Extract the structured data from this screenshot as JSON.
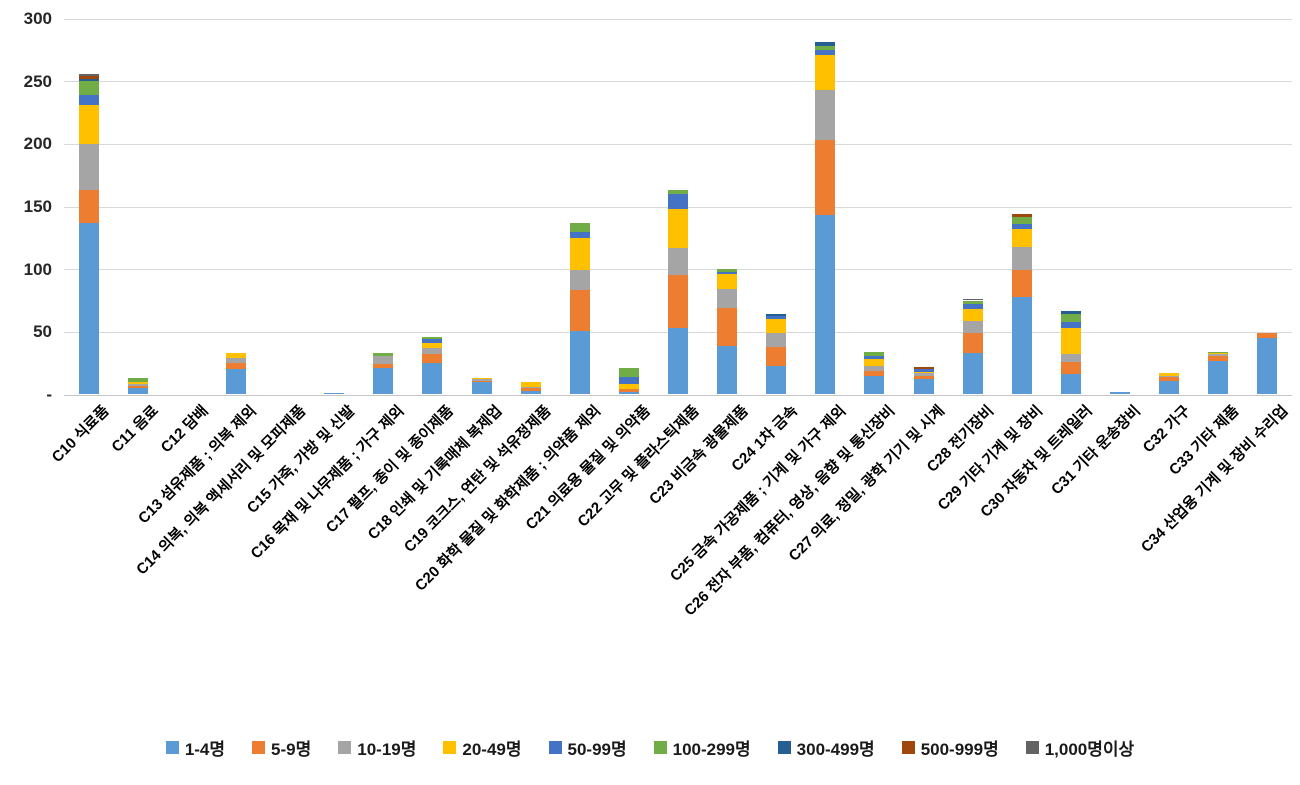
{
  "chart_data": {
    "type": "bar",
    "stacked": true,
    "title": "",
    "xlabel": "",
    "ylabel": "",
    "ylim": [
      0,
      300
    ],
    "grid": true,
    "legend_position": "bottom",
    "y_ticks": [
      {
        "value": 0,
        "label": "-"
      },
      {
        "value": 50,
        "label": "50"
      },
      {
        "value": 100,
        "label": "100"
      },
      {
        "value": 150,
        "label": "150"
      },
      {
        "value": 200,
        "label": "200"
      },
      {
        "value": 250,
        "label": "250"
      },
      {
        "value": 300,
        "label": "300"
      }
    ],
    "categories": [
      "C10 식료품",
      "C11 음료",
      "C12 담배",
      "C13 섬유제품 ; 의복 제외",
      "C14 의복, 의복 액세서리 및 모피제품",
      "C15 가죽, 가방 및 신발",
      "C16 목재 및 나무제품 ; 가구 제외",
      "C17 펄프, 종이 및 종이제품",
      "C18 인쇄 및 기록매체 복제업",
      "C19 코크스, 연탄 및 석유정제품",
      "C20 화학 물질 및 화학제품 ; 의약품 제외",
      "C21 의료용 물질 및 의약품",
      "C22 고무 및 플라스틱제품",
      "C23 비금속 광물제품",
      "C24 1차 금속",
      "C25 금속 가공제품 ; 기계 및 가구 제외",
      "C26 전자 부품, 컴퓨터, 영상, 음향 및 통신장비",
      "C27 의료, 정밀, 광학 기기 및 시계",
      "C28 전기장비",
      "C29 기타 기계 및 장비",
      "C30 자동차 및 트레일러",
      "C31 기타 운송장비",
      "C32 가구",
      "C33 기타 제품",
      "C34 산업용 기계 및 장비 수리업"
    ],
    "series": [
      {
        "name": "1-4명",
        "color": "#5B9BD5",
        "values": [
          137,
          5,
          0,
          20,
          0,
          1,
          21,
          25,
          10,
          3,
          51,
          2,
          53,
          39,
          23,
          143,
          15,
          12,
          33,
          78,
          16,
          2,
          11,
          27,
          45
        ]
      },
      {
        "name": "5-9명",
        "color": "#ED7D31",
        "values": [
          26,
          2,
          0,
          5,
          0,
          0,
          3,
          7,
          1,
          2,
          32,
          2,
          42,
          30,
          15,
          60,
          4,
          3,
          16,
          21,
          10,
          0,
          3,
          4,
          4
        ]
      },
      {
        "name": "10-19명",
        "color": "#A5A5A5",
        "values": [
          37,
          1,
          0,
          4,
          0,
          0,
          7,
          5,
          1,
          1,
          16,
          0,
          22,
          15,
          11,
          40,
          4,
          2,
          10,
          19,
          6,
          0,
          1,
          1,
          0
        ]
      },
      {
        "name": "20-49명",
        "color": "#FFC000",
        "values": [
          31,
          2,
          0,
          4,
          0,
          0,
          0,
          4,
          1,
          4,
          26,
          4,
          31,
          12,
          11,
          28,
          5,
          1,
          9,
          14,
          21,
          0,
          2,
          1,
          0
        ]
      },
      {
        "name": "50-99명",
        "color": "#4472C4",
        "values": [
          8,
          0,
          0,
          0,
          0,
          0,
          0,
          3,
          0,
          0,
          5,
          6,
          12,
          2,
          3,
          4,
          3,
          2,
          4,
          4,
          5,
          0,
          0,
          0,
          0
        ]
      },
      {
        "name": "100-299명",
        "color": "#70AD47",
        "values": [
          11,
          3,
          0,
          0,
          0,
          0,
          2,
          2,
          0,
          0,
          7,
          7,
          3,
          2,
          0,
          3,
          3,
          0,
          3,
          6,
          6,
          0,
          0,
          1,
          0
        ]
      },
      {
        "name": "300-499명",
        "color": "#255E91",
        "values": [
          2,
          0,
          0,
          0,
          0,
          0,
          0,
          0,
          0,
          0,
          0,
          0,
          0,
          0,
          1,
          3,
          0,
          0,
          0,
          0,
          3,
          0,
          0,
          0,
          0
        ]
      },
      {
        "name": "500-999명",
        "color": "#9E480E",
        "values": [
          2,
          0,
          0,
          0,
          0,
          0,
          0,
          0,
          0,
          0,
          0,
          0,
          0,
          0,
          0,
          0,
          0,
          2,
          0,
          2,
          0,
          0,
          0,
          0,
          0
        ]
      },
      {
        "name": "1,000명이상",
        "color": "#636363",
        "values": [
          2,
          0,
          0,
          0,
          0,
          0,
          0,
          0,
          0,
          0,
          0,
          0,
          0,
          0,
          0,
          0,
          0,
          0,
          1,
          0,
          0,
          0,
          0,
          0,
          0
        ]
      }
    ]
  }
}
